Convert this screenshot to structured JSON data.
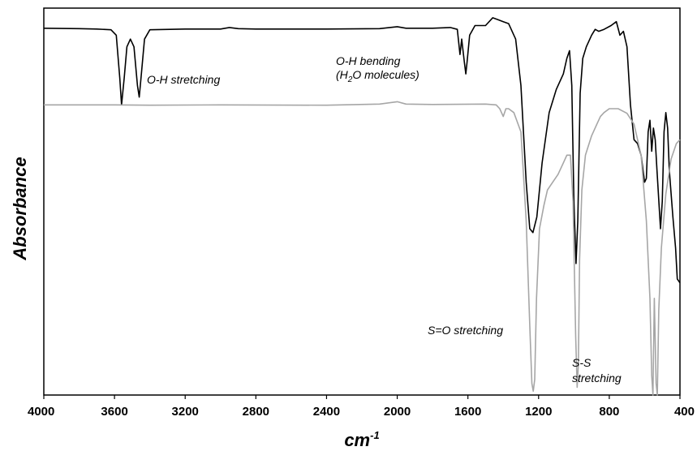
{
  "chart_data": {
    "type": "line",
    "xlabel": "cm",
    "xlabel_superscript": "-1",
    "ylabel": "Absorbance",
    "xlim": [
      4000,
      400
    ],
    "x_reversed": true,
    "ylim": [
      0,
      1
    ],
    "y_ticks_shown": false,
    "grid": false,
    "legend": "none",
    "x_ticks": [
      "4000",
      "3600",
      "3200",
      "2800",
      "2400",
      "2000",
      "1600",
      "1200",
      "800",
      "400"
    ],
    "annotations": {
      "oh_stretch": "O-H stretching",
      "oh_bend_1": "O-H bending",
      "oh_bend_2_pre": "(H",
      "oh_bend_2_sub": "2",
      "oh_bend_2_post": "O molecules)",
      "so_stretch": "S=O stretching",
      "ss_1": "S-S",
      "ss_2": "stretching"
    },
    "series": [
      {
        "color": "#000000",
        "points": [
          [
            4000,
            0.948
          ],
          [
            3800,
            0.947
          ],
          [
            3700,
            0.946
          ],
          [
            3620,
            0.944
          ],
          [
            3590,
            0.93
          ],
          [
            3570,
            0.82
          ],
          [
            3560,
            0.75
          ],
          [
            3545,
            0.82
          ],
          [
            3530,
            0.9
          ],
          [
            3510,
            0.92
          ],
          [
            3490,
            0.9
          ],
          [
            3470,
            0.8
          ],
          [
            3460,
            0.77
          ],
          [
            3450,
            0.82
          ],
          [
            3430,
            0.92
          ],
          [
            3400,
            0.944
          ],
          [
            3200,
            0.946
          ],
          [
            3000,
            0.946
          ],
          [
            2950,
            0.95
          ],
          [
            2900,
            0.947
          ],
          [
            2800,
            0.946
          ],
          [
            2400,
            0.946
          ],
          [
            2100,
            0.947
          ],
          [
            2000,
            0.952
          ],
          [
            1950,
            0.948
          ],
          [
            1800,
            0.948
          ],
          [
            1700,
            0.95
          ],
          [
            1660,
            0.945
          ],
          [
            1645,
            0.88
          ],
          [
            1640,
            0.9
          ],
          [
            1635,
            0.92
          ],
          [
            1620,
            0.86
          ],
          [
            1612,
            0.83
          ],
          [
            1605,
            0.86
          ],
          [
            1590,
            0.93
          ],
          [
            1560,
            0.955
          ],
          [
            1500,
            0.955
          ],
          [
            1460,
            0.975
          ],
          [
            1430,
            0.97
          ],
          [
            1400,
            0.965
          ],
          [
            1370,
            0.96
          ],
          [
            1330,
            0.92
          ],
          [
            1300,
            0.8
          ],
          [
            1270,
            0.55
          ],
          [
            1250,
            0.43
          ],
          [
            1232,
            0.42
          ],
          [
            1210,
            0.46
          ],
          [
            1180,
            0.6
          ],
          [
            1140,
            0.73
          ],
          [
            1100,
            0.79
          ],
          [
            1060,
            0.83
          ],
          [
            1040,
            0.87
          ],
          [
            1025,
            0.89
          ],
          [
            1012,
            0.8
          ],
          [
            1000,
            0.5
          ],
          [
            988,
            0.34
          ],
          [
            978,
            0.45
          ],
          [
            965,
            0.78
          ],
          [
            950,
            0.87
          ],
          [
            930,
            0.9
          ],
          [
            900,
            0.93
          ],
          [
            880,
            0.945
          ],
          [
            860,
            0.94
          ],
          [
            830,
            0.945
          ],
          [
            790,
            0.955
          ],
          [
            760,
            0.965
          ],
          [
            740,
            0.93
          ],
          [
            720,
            0.94
          ],
          [
            700,
            0.9
          ],
          [
            680,
            0.75
          ],
          [
            660,
            0.66
          ],
          [
            640,
            0.65
          ],
          [
            620,
            0.62
          ],
          [
            600,
            0.55
          ],
          [
            590,
            0.56
          ],
          [
            580,
            0.68
          ],
          [
            570,
            0.71
          ],
          [
            560,
            0.63
          ],
          [
            550,
            0.69
          ],
          [
            540,
            0.66
          ],
          [
            530,
            0.58
          ],
          [
            510,
            0.43
          ],
          [
            500,
            0.5
          ],
          [
            490,
            0.68
          ],
          [
            480,
            0.73
          ],
          [
            470,
            0.69
          ],
          [
            460,
            0.58
          ],
          [
            440,
            0.46
          ],
          [
            425,
            0.38
          ],
          [
            415,
            0.3
          ],
          [
            400,
            0.29
          ]
        ]
      },
      {
        "color": "#a6a6a6",
        "points": [
          [
            4000,
            0.75
          ],
          [
            3600,
            0.75
          ],
          [
            3400,
            0.749
          ],
          [
            3000,
            0.75
          ],
          [
            2400,
            0.749
          ],
          [
            2100,
            0.752
          ],
          [
            2000,
            0.758
          ],
          [
            1950,
            0.752
          ],
          [
            1800,
            0.751
          ],
          [
            1500,
            0.752
          ],
          [
            1440,
            0.75
          ],
          [
            1420,
            0.74
          ],
          [
            1400,
            0.72
          ],
          [
            1385,
            0.74
          ],
          [
            1370,
            0.74
          ],
          [
            1340,
            0.73
          ],
          [
            1300,
            0.68
          ],
          [
            1270,
            0.45
          ],
          [
            1250,
            0.18
          ],
          [
            1238,
            0.03
          ],
          [
            1230,
            0.01
          ],
          [
            1222,
            0.04
          ],
          [
            1212,
            0.25
          ],
          [
            1195,
            0.43
          ],
          [
            1170,
            0.49
          ],
          [
            1150,
            0.53
          ],
          [
            1120,
            0.55
          ],
          [
            1090,
            0.57
          ],
          [
            1060,
            0.6
          ],
          [
            1040,
            0.62
          ],
          [
            1020,
            0.62
          ],
          [
            1005,
            0.5
          ],
          [
            990,
            0.15
          ],
          [
            982,
            0.02
          ],
          [
            975,
            0.08
          ],
          [
            968,
            0.35
          ],
          [
            955,
            0.53
          ],
          [
            935,
            0.62
          ],
          [
            900,
            0.67
          ],
          [
            870,
            0.7
          ],
          [
            850,
            0.72
          ],
          [
            830,
            0.73
          ],
          [
            800,
            0.74
          ],
          [
            750,
            0.74
          ],
          [
            700,
            0.728
          ],
          [
            660,
            0.7
          ],
          [
            620,
            0.62
          ],
          [
            590,
            0.45
          ],
          [
            570,
            0.25
          ],
          [
            560,
            0.05
          ],
          [
            553,
            0.0
          ],
          [
            545,
            0.25
          ],
          [
            535,
            0.03
          ],
          [
            528,
            0.0
          ],
          [
            520,
            0.22
          ],
          [
            505,
            0.38
          ],
          [
            480,
            0.52
          ],
          [
            450,
            0.61
          ],
          [
            420,
            0.65
          ],
          [
            400,
            0.66
          ]
        ]
      }
    ]
  }
}
